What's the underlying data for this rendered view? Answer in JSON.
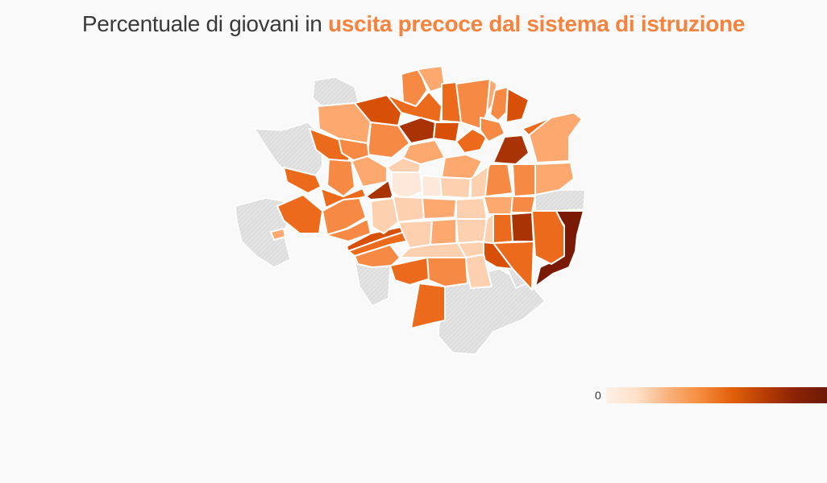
{
  "title": {
    "prefix": "Percentuale di giovani in ",
    "highlight": "uscita precoce dal sistema di istruzione"
  },
  "colors": {
    "background": "#f9f9f9",
    "nodata": "#e3e3e3",
    "border": "#ffffff",
    "highlight": "#f5833d",
    "scale": [
      "#fde8da",
      "#fdd0b0",
      "#fca86f",
      "#f68a45",
      "#ec6a1b",
      "#d84f08",
      "#a93304",
      "#7a1a05"
    ]
  },
  "legend": {
    "min_label": "0",
    "gradient": [
      "#fdf0e6",
      "#fde0c8",
      "#f9b07a",
      "#f58b3e",
      "#e25f0a",
      "#b83e05",
      "#8a2203",
      "#6e1a05"
    ]
  },
  "map_data": {
    "type": "choropleth",
    "districts": [
      {
        "id": "n1",
        "level": 2
      },
      {
        "id": "n2",
        "level": 4
      },
      {
        "id": "n3",
        "level": 5
      },
      {
        "id": "n4",
        "level": 3
      },
      {
        "id": "n5",
        "level": 3
      },
      {
        "id": "n6",
        "level": 4
      },
      {
        "id": "n7",
        "level": 2
      },
      {
        "id": "n8",
        "level": 4
      },
      {
        "id": "n9",
        "level": 6
      },
      {
        "id": "n10",
        "level": 5
      },
      {
        "id": "n11",
        "level": 3
      },
      {
        "id": "n12",
        "level": 2
      },
      {
        "id": "n13",
        "level": 3
      },
      {
        "id": "n14",
        "level": 5
      },
      {
        "id": "n15",
        "level": 4
      },
      {
        "id": "n16",
        "level": 3
      },
      {
        "id": "e1",
        "level": 2
      },
      {
        "id": "e2",
        "level": 2
      },
      {
        "id": "e3",
        "level": 3
      },
      {
        "id": "e4",
        "level": 7
      },
      {
        "id": "e5",
        "level": 6
      },
      {
        "id": "e6",
        "level": 3
      },
      {
        "id": "e7",
        "level": 4
      },
      {
        "id": "e8",
        "level": 4
      },
      {
        "id": "w1",
        "level": 3
      },
      {
        "id": "w2",
        "level": 3
      },
      {
        "id": "w3",
        "level": 4
      },
      {
        "id": "w4",
        "level": 2
      },
      {
        "id": "w5",
        "level": 6
      },
      {
        "id": "w6",
        "level": 4
      },
      {
        "id": "w7",
        "level": 3
      },
      {
        "id": "w8",
        "level": 2
      },
      {
        "id": "s1",
        "level": 4
      },
      {
        "id": "s2",
        "level": 3
      },
      {
        "id": "s3",
        "level": 4
      },
      {
        "id": "s4",
        "level": 1
      },
      {
        "id": "s5",
        "level": 3
      },
      {
        "id": "s6",
        "level": 4
      },
      {
        "id": "s7",
        "level": 5
      },
      {
        "id": "c1",
        "level": 0
      },
      {
        "id": "c2",
        "level": 0
      },
      {
        "id": "c3",
        "level": 1
      },
      {
        "id": "c4",
        "level": 1
      },
      {
        "id": "c5",
        "level": 2
      },
      {
        "id": "c6",
        "level": 1
      },
      {
        "id": "c7",
        "level": 1
      },
      {
        "id": "c8",
        "level": 2
      },
      {
        "id": "c9",
        "level": 1
      }
    ]
  }
}
